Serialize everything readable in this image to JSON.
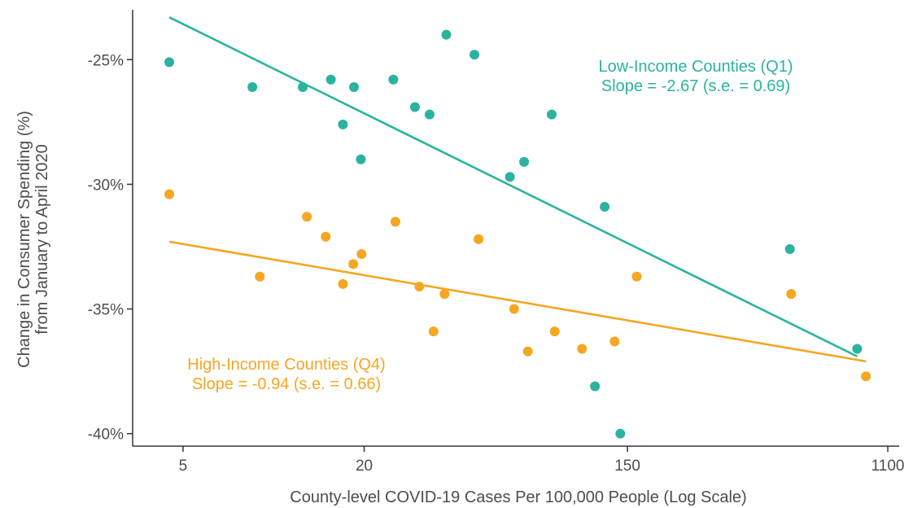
{
  "chart_data": {
    "type": "scatter",
    "title": "",
    "xlabel": "County-level COVID-19 Cases Per 100,000 People (Log Scale)",
    "ylabel": "Change in Consumer Spending (%)",
    "ylabel_line2": "from January to April 2020",
    "x_scale": "log",
    "xlim": [
      3.4,
      1200
    ],
    "ylim": [
      -40.5,
      -23.0
    ],
    "x_ticks": [
      5,
      20,
      150,
      1100
    ],
    "x_tick_labels": [
      "5",
      "20",
      "150",
      "1100"
    ],
    "y_ticks": [
      -25,
      -30,
      -35,
      -40
    ],
    "y_tick_labels": [
      "-25%",
      "-30%",
      "-35%",
      "-40%"
    ],
    "grid": false,
    "legend": "none",
    "series": [
      {
        "name": "Low-Income Counties (Q1)",
        "color": "#2bb39f",
        "points": [
          [
            4.5,
            -25.1
          ],
          [
            8.5,
            -26.1
          ],
          [
            12.5,
            -26.1
          ],
          [
            15.5,
            -25.8
          ],
          [
            18.5,
            -26.1
          ],
          [
            17.0,
            -27.6
          ],
          [
            19.5,
            -29.0
          ],
          [
            25.0,
            -25.8
          ],
          [
            29.5,
            -26.9
          ],
          [
            33.0,
            -27.2
          ],
          [
            37.5,
            -24.0
          ],
          [
            46.5,
            -24.8
          ],
          [
            61.0,
            -29.7
          ],
          [
            68.0,
            -29.1
          ],
          [
            84.0,
            -27.2
          ],
          [
            126.0,
            -30.9
          ],
          [
            117.0,
            -38.1
          ],
          [
            142.0,
            -40.0
          ],
          [
            520.0,
            -32.6
          ],
          [
            870.0,
            -36.6
          ]
        ],
        "fit": {
          "x": [
            4.5,
            870.0
          ],
          "y": [
            -23.3,
            -36.9
          ]
        },
        "annotation_lines": [
          "Low-Income Counties (Q1)",
          "Slope = -2.67 (s.e. = 0.69)"
        ]
      },
      {
        "name": "High-Income Counties (Q4)",
        "color": "#f5a623",
        "points": [
          [
            4.5,
            -30.4
          ],
          [
            9.0,
            -33.7
          ],
          [
            12.9,
            -31.3
          ],
          [
            14.9,
            -32.1
          ],
          [
            18.4,
            -33.2
          ],
          [
            17.0,
            -34.0
          ],
          [
            19.6,
            -32.8
          ],
          [
            25.4,
            -31.5
          ],
          [
            30.5,
            -34.1
          ],
          [
            34.0,
            -35.9
          ],
          [
            37.0,
            -34.4
          ],
          [
            48.0,
            -32.2
          ],
          [
            63.0,
            -35.0
          ],
          [
            70.0,
            -36.7
          ],
          [
            86.0,
            -35.9
          ],
          [
            106.0,
            -36.6
          ],
          [
            136.0,
            -36.3
          ],
          [
            161.0,
            -33.7
          ],
          [
            525.0,
            -34.4
          ],
          [
            930.0,
            -37.7
          ]
        ],
        "fit": {
          "x": [
            4.5,
            930.0
          ],
          "y": [
            -32.3,
            -37.1
          ]
        },
        "annotation_lines": [
          "High-Income Counties (Q4)",
          "Slope = -0.94 (s.e. = 0.66)"
        ]
      }
    ]
  }
}
